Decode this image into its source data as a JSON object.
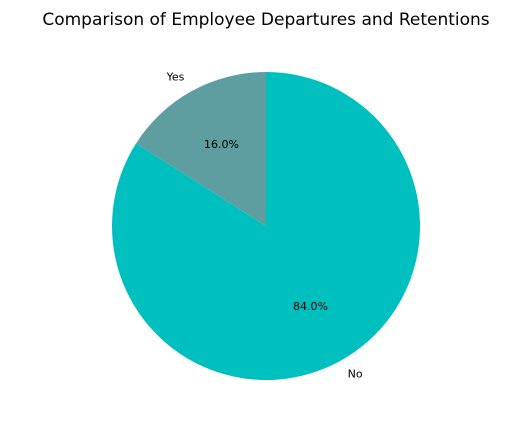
{
  "chart_data": {
    "type": "pie",
    "title": "Comparison of Employee Departures and Retentions",
    "slices": [
      {
        "label": "Yes",
        "value": 16.0,
        "pct_label": "16.0%",
        "color": "#5f9ea0"
      },
      {
        "label": "No",
        "value": 84.0,
        "pct_label": "84.0%",
        "color": "#00bfbf"
      }
    ],
    "start_angle_deg": 90,
    "direction": "counterclockwise"
  }
}
